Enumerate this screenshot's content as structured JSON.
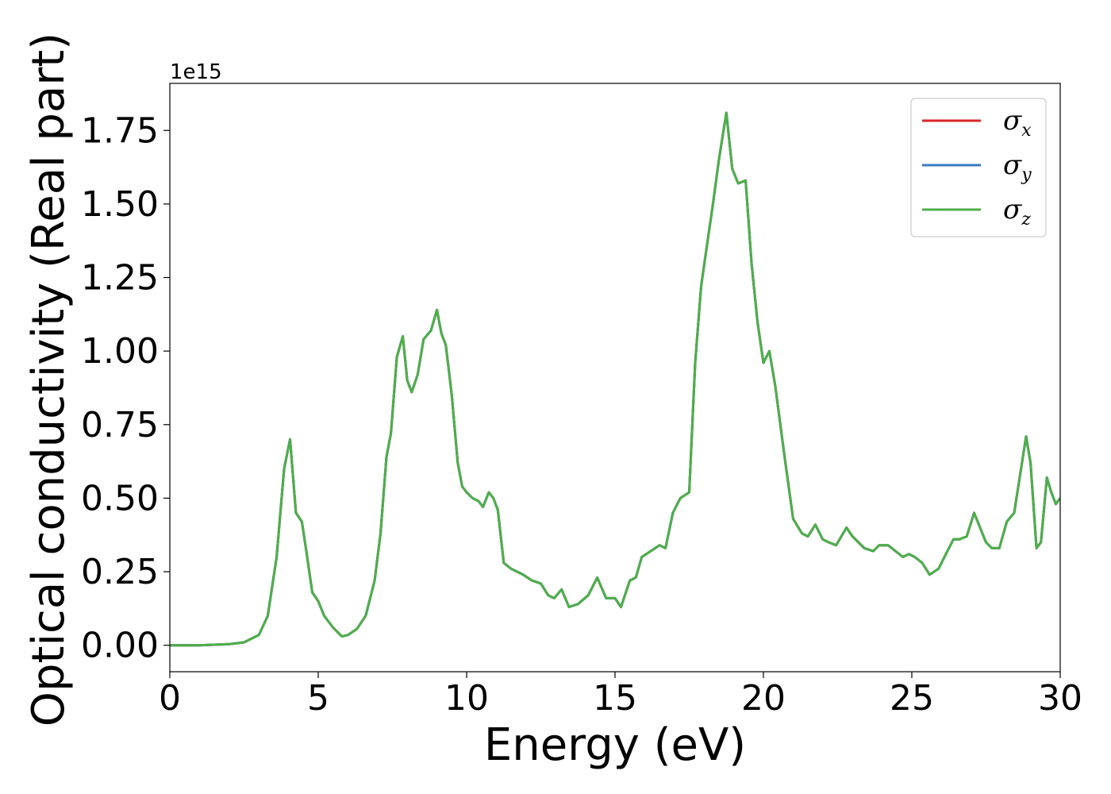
{
  "chart_data": {
    "type": "line",
    "xlabel": "Energy (eV)",
    "ylabel": "Optical conductivity (Real part)",
    "y_offset_label": "1e15",
    "xlim": [
      0,
      30
    ],
    "ylim": [
      -0.09,
      1.91
    ],
    "x_ticks": [
      0,
      5,
      10,
      15,
      20,
      25,
      30
    ],
    "x_tick_labels": [
      "0",
      "5",
      "10",
      "15",
      "20",
      "25",
      "30"
    ],
    "y_ticks": [
      0.0,
      0.25,
      0.5,
      0.75,
      1.0,
      1.25,
      1.5,
      1.75
    ],
    "y_tick_labels": [
      "0.00",
      "0.25",
      "0.50",
      "0.75",
      "1.00",
      "1.25",
      "1.50",
      "1.75"
    ],
    "grid": false,
    "legend_position": "top-right",
    "series": [
      {
        "name": "σ",
        "subscript": "x",
        "color": "#d62728"
      },
      {
        "name": "σ",
        "subscript": "y",
        "color": "#3a7dbf"
      },
      {
        "name": "σ",
        "subscript": "z",
        "color": "#4daf4a"
      }
    ],
    "x": [
      0,
      1.0,
      2.0,
      2.5,
      3.0,
      3.3,
      3.6,
      3.85,
      4.05,
      4.25,
      4.45,
      4.6,
      4.8,
      5.0,
      5.2,
      5.5,
      5.8,
      6.0,
      6.3,
      6.6,
      6.9,
      7.1,
      7.3,
      7.45,
      7.65,
      7.85,
      8.0,
      8.15,
      8.35,
      8.55,
      8.8,
      9.0,
      9.15,
      9.3,
      9.5,
      9.7,
      9.85,
      10.0,
      10.2,
      10.4,
      10.55,
      10.75,
      10.9,
      11.05,
      11.25,
      11.5,
      11.7,
      11.9,
      12.2,
      12.5,
      12.75,
      12.95,
      13.2,
      13.45,
      13.75,
      14.1,
      14.4,
      14.7,
      15.0,
      15.2,
      15.5,
      15.7,
      15.9,
      16.2,
      16.5,
      16.7,
      16.95,
      17.2,
      17.5,
      17.7,
      17.9,
      18.1,
      18.3,
      18.5,
      18.75,
      18.95,
      19.15,
      19.4,
      19.6,
      19.8,
      20.0,
      20.2,
      20.4,
      20.7,
      21.0,
      21.3,
      21.5,
      21.75,
      22.0,
      22.2,
      22.45,
      22.8,
      23.0,
      23.2,
      23.4,
      23.7,
      23.9,
      24.2,
      24.45,
      24.7,
      24.9,
      25.1,
      25.35,
      25.6,
      25.9,
      26.1,
      26.4,
      26.6,
      26.85,
      27.1,
      27.3,
      27.5,
      27.7,
      27.95,
      28.2,
      28.45,
      28.65,
      28.85,
      29.0,
      29.2,
      29.35,
      29.55,
      29.7,
      29.85,
      30.0
    ],
    "y": [
      0.0,
      0.0,
      0.004,
      0.01,
      0.035,
      0.1,
      0.3,
      0.6,
      0.7,
      0.45,
      0.42,
      0.32,
      0.18,
      0.15,
      0.1,
      0.06,
      0.03,
      0.035,
      0.055,
      0.1,
      0.22,
      0.38,
      0.64,
      0.72,
      0.98,
      1.05,
      0.9,
      0.86,
      0.92,
      1.04,
      1.07,
      1.14,
      1.06,
      1.02,
      0.85,
      0.62,
      0.54,
      0.52,
      0.5,
      0.49,
      0.47,
      0.52,
      0.5,
      0.46,
      0.28,
      0.26,
      0.25,
      0.24,
      0.22,
      0.21,
      0.17,
      0.16,
      0.19,
      0.13,
      0.14,
      0.17,
      0.23,
      0.16,
      0.16,
      0.13,
      0.22,
      0.23,
      0.3,
      0.32,
      0.34,
      0.33,
      0.45,
      0.5,
      0.52,
      0.96,
      1.22,
      1.36,
      1.5,
      1.65,
      1.81,
      1.62,
      1.57,
      1.58,
      1.3,
      1.1,
      0.96,
      1.0,
      0.88,
      0.65,
      0.43,
      0.38,
      0.37,
      0.41,
      0.36,
      0.35,
      0.34,
      0.4,
      0.37,
      0.35,
      0.33,
      0.32,
      0.34,
      0.34,
      0.32,
      0.3,
      0.31,
      0.3,
      0.28,
      0.24,
      0.26,
      0.3,
      0.36,
      0.36,
      0.37,
      0.45,
      0.4,
      0.35,
      0.33,
      0.33,
      0.42,
      0.45,
      0.58,
      0.71,
      0.62,
      0.33,
      0.35,
      0.57,
      0.52,
      0.48,
      0.5
    ]
  }
}
